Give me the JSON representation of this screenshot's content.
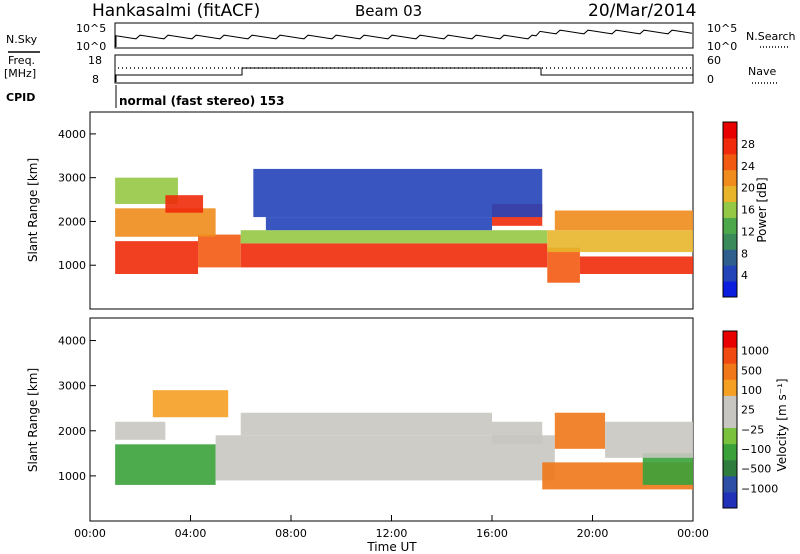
{
  "header": {
    "station": "Hankasalmi (fitACF)",
    "beam": "Beam 03",
    "date": "20/Mar/2014"
  },
  "sky_panel": {
    "left_label": "N.Sky",
    "left_ticks": [
      "10^5",
      "10^0"
    ],
    "right_label": "N.Search",
    "right_ticks": [
      "10^5",
      "10^0"
    ]
  },
  "freq_panel": {
    "left_label_line1": "Freq.",
    "left_label_line2": "[MHz]",
    "left_ticks": [
      "18",
      "8"
    ],
    "right_label": "Nave",
    "right_ticks": [
      "60",
      "0"
    ]
  },
  "cpid": {
    "label": "CPID",
    "text": "normal (fast stereo) 153"
  },
  "colors": {
    "power_scale": [
      "#0b1ee0",
      "#2343b8",
      "#2f5f8c",
      "#3b8a5a",
      "#4ca84a",
      "#95c844",
      "#e8b52a",
      "#f08c1c",
      "#f25a12",
      "#f02a0a",
      "#e80000"
    ],
    "velocity_scale": [
      "#2232b8",
      "#2d4fa5",
      "#2f7d3e",
      "#3aa13a",
      "#7ac23e",
      "#c8c6c0",
      "#c8c6c0",
      "#f5a023",
      "#f07818",
      "#f04a10",
      "#e80000"
    ]
  },
  "chart_data": [
    {
      "type": "heatmap",
      "name": "power",
      "ylabel": "Slant Range [km]",
      "ylim": [
        0,
        4500
      ],
      "yticks": [
        "1000",
        "2000",
        "3000",
        "4000"
      ],
      "colorbar_label": "Power [dB]",
      "colorbar_ticks": [
        "4",
        "8",
        "12",
        "16",
        "20",
        "24",
        "28"
      ],
      "bands": [
        {
          "t0": 1.0,
          "t1": 4.3,
          "r0": 800,
          "r1": 1550,
          "level": 9
        },
        {
          "t0": 4.3,
          "t1": 6.0,
          "r0": 950,
          "r1": 1700,
          "level": 8
        },
        {
          "t0": 6.0,
          "t1": 18.2,
          "r0": 950,
          "r1": 1500,
          "level": 9
        },
        {
          "t0": 18.2,
          "t1": 19.5,
          "r0": 600,
          "r1": 1400,
          "level": 8
        },
        {
          "t0": 19.5,
          "t1": 24.0,
          "r0": 800,
          "r1": 1200,
          "level": 9
        },
        {
          "t0": 6.0,
          "t1": 18.2,
          "r0": 1500,
          "r1": 1800,
          "level": 5
        },
        {
          "t0": 7.0,
          "t1": 16.0,
          "r0": 1800,
          "r1": 2100,
          "level": 1
        },
        {
          "t0": 1.0,
          "t1": 5.0,
          "r0": 1650,
          "r1": 2300,
          "level": 7
        },
        {
          "t0": 1.0,
          "t1": 3.5,
          "r0": 2400,
          "r1": 3000,
          "level": 5
        },
        {
          "t0": 3.0,
          "t1": 4.5,
          "r0": 2200,
          "r1": 2600,
          "level": 9
        },
        {
          "t0": 18.2,
          "t1": 24.0,
          "r0": 1300,
          "r1": 1800,
          "level": 6
        },
        {
          "t0": 18.5,
          "t1": 24.0,
          "r0": 1800,
          "r1": 2250,
          "level": 7
        },
        {
          "t0": 16.0,
          "t1": 18.0,
          "r0": 1900,
          "r1": 2400,
          "level": 9
        },
        {
          "t0": 6.5,
          "t1": 18.0,
          "r0": 2100,
          "r1": 3200,
          "level": 1
        }
      ]
    },
    {
      "type": "heatmap",
      "name": "velocity",
      "xlabel": "Time UT",
      "ylabel": "Slant Range [km]",
      "ylim": [
        0,
        4500
      ],
      "yticks": [
        "1000",
        "2000",
        "3000",
        "4000"
      ],
      "xticks": [
        "00:00",
        "04:00",
        "08:00",
        "12:00",
        "16:00",
        "20:00",
        "00:00"
      ],
      "xlim": [
        0,
        24
      ],
      "colorbar_label": "Velocity [m s⁻¹]",
      "colorbar_ticks": [
        "1000",
        "500",
        "100",
        "25",
        "−25",
        "−100",
        "−500",
        "−1000"
      ],
      "bands": [
        {
          "t0": 1.0,
          "t1": 5.0,
          "r0": 800,
          "r1": 1700,
          "level": 3
        },
        {
          "t0": 1.0,
          "t1": 3.0,
          "r0": 1800,
          "r1": 2200,
          "level": 5
        },
        {
          "t0": 2.5,
          "t1": 5.5,
          "r0": 2300,
          "r1": 2900,
          "level": 7
        },
        {
          "t0": 5.0,
          "t1": 18.5,
          "r0": 900,
          "r1": 1900,
          "level": 5
        },
        {
          "t0": 6.0,
          "t1": 16.0,
          "r0": 1900,
          "r1": 2400,
          "level": 5
        },
        {
          "t0": 16.0,
          "t1": 18.0,
          "r0": 1700,
          "r1": 2200,
          "level": 5
        },
        {
          "t0": 18.0,
          "t1": 24.0,
          "r0": 700,
          "r1": 1300,
          "level": 8
        },
        {
          "t0": 18.5,
          "t1": 20.5,
          "r0": 1600,
          "r1": 2400,
          "level": 8
        },
        {
          "t0": 22.0,
          "t1": 24.0,
          "r0": 800,
          "r1": 1500,
          "level": 3
        },
        {
          "t0": 20.5,
          "t1": 24.0,
          "r0": 1400,
          "r1": 2200,
          "level": 5
        }
      ]
    }
  ]
}
